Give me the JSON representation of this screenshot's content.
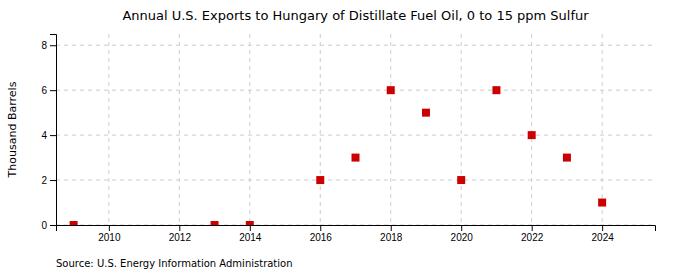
{
  "chart_data": {
    "type": "scatter",
    "title": "Annual U.S. Exports to Hungary of Distillate Fuel Oil, 0 to 15 ppm Sulfur",
    "y_label": "Thousand Barrels",
    "source": "Source: U.S. Energy Information Administration",
    "x": [
      2009,
      2013,
      2014,
      2016,
      2017,
      2018,
      2019,
      2020,
      2021,
      2022,
      2023,
      2024
    ],
    "values": [
      0,
      0,
      0,
      2,
      3,
      6,
      5,
      2,
      6,
      4,
      3,
      1
    ],
    "xlim": [
      2008.5,
      2025.5
    ],
    "ylim": [
      0,
      8.5
    ],
    "xticks": [
      2010,
      2012,
      2014,
      2016,
      2018,
      2020,
      2022,
      2024
    ],
    "yticks": [
      0,
      2,
      4,
      6,
      8
    ],
    "color": "#cc0000",
    "marker": "square",
    "grid": true
  }
}
